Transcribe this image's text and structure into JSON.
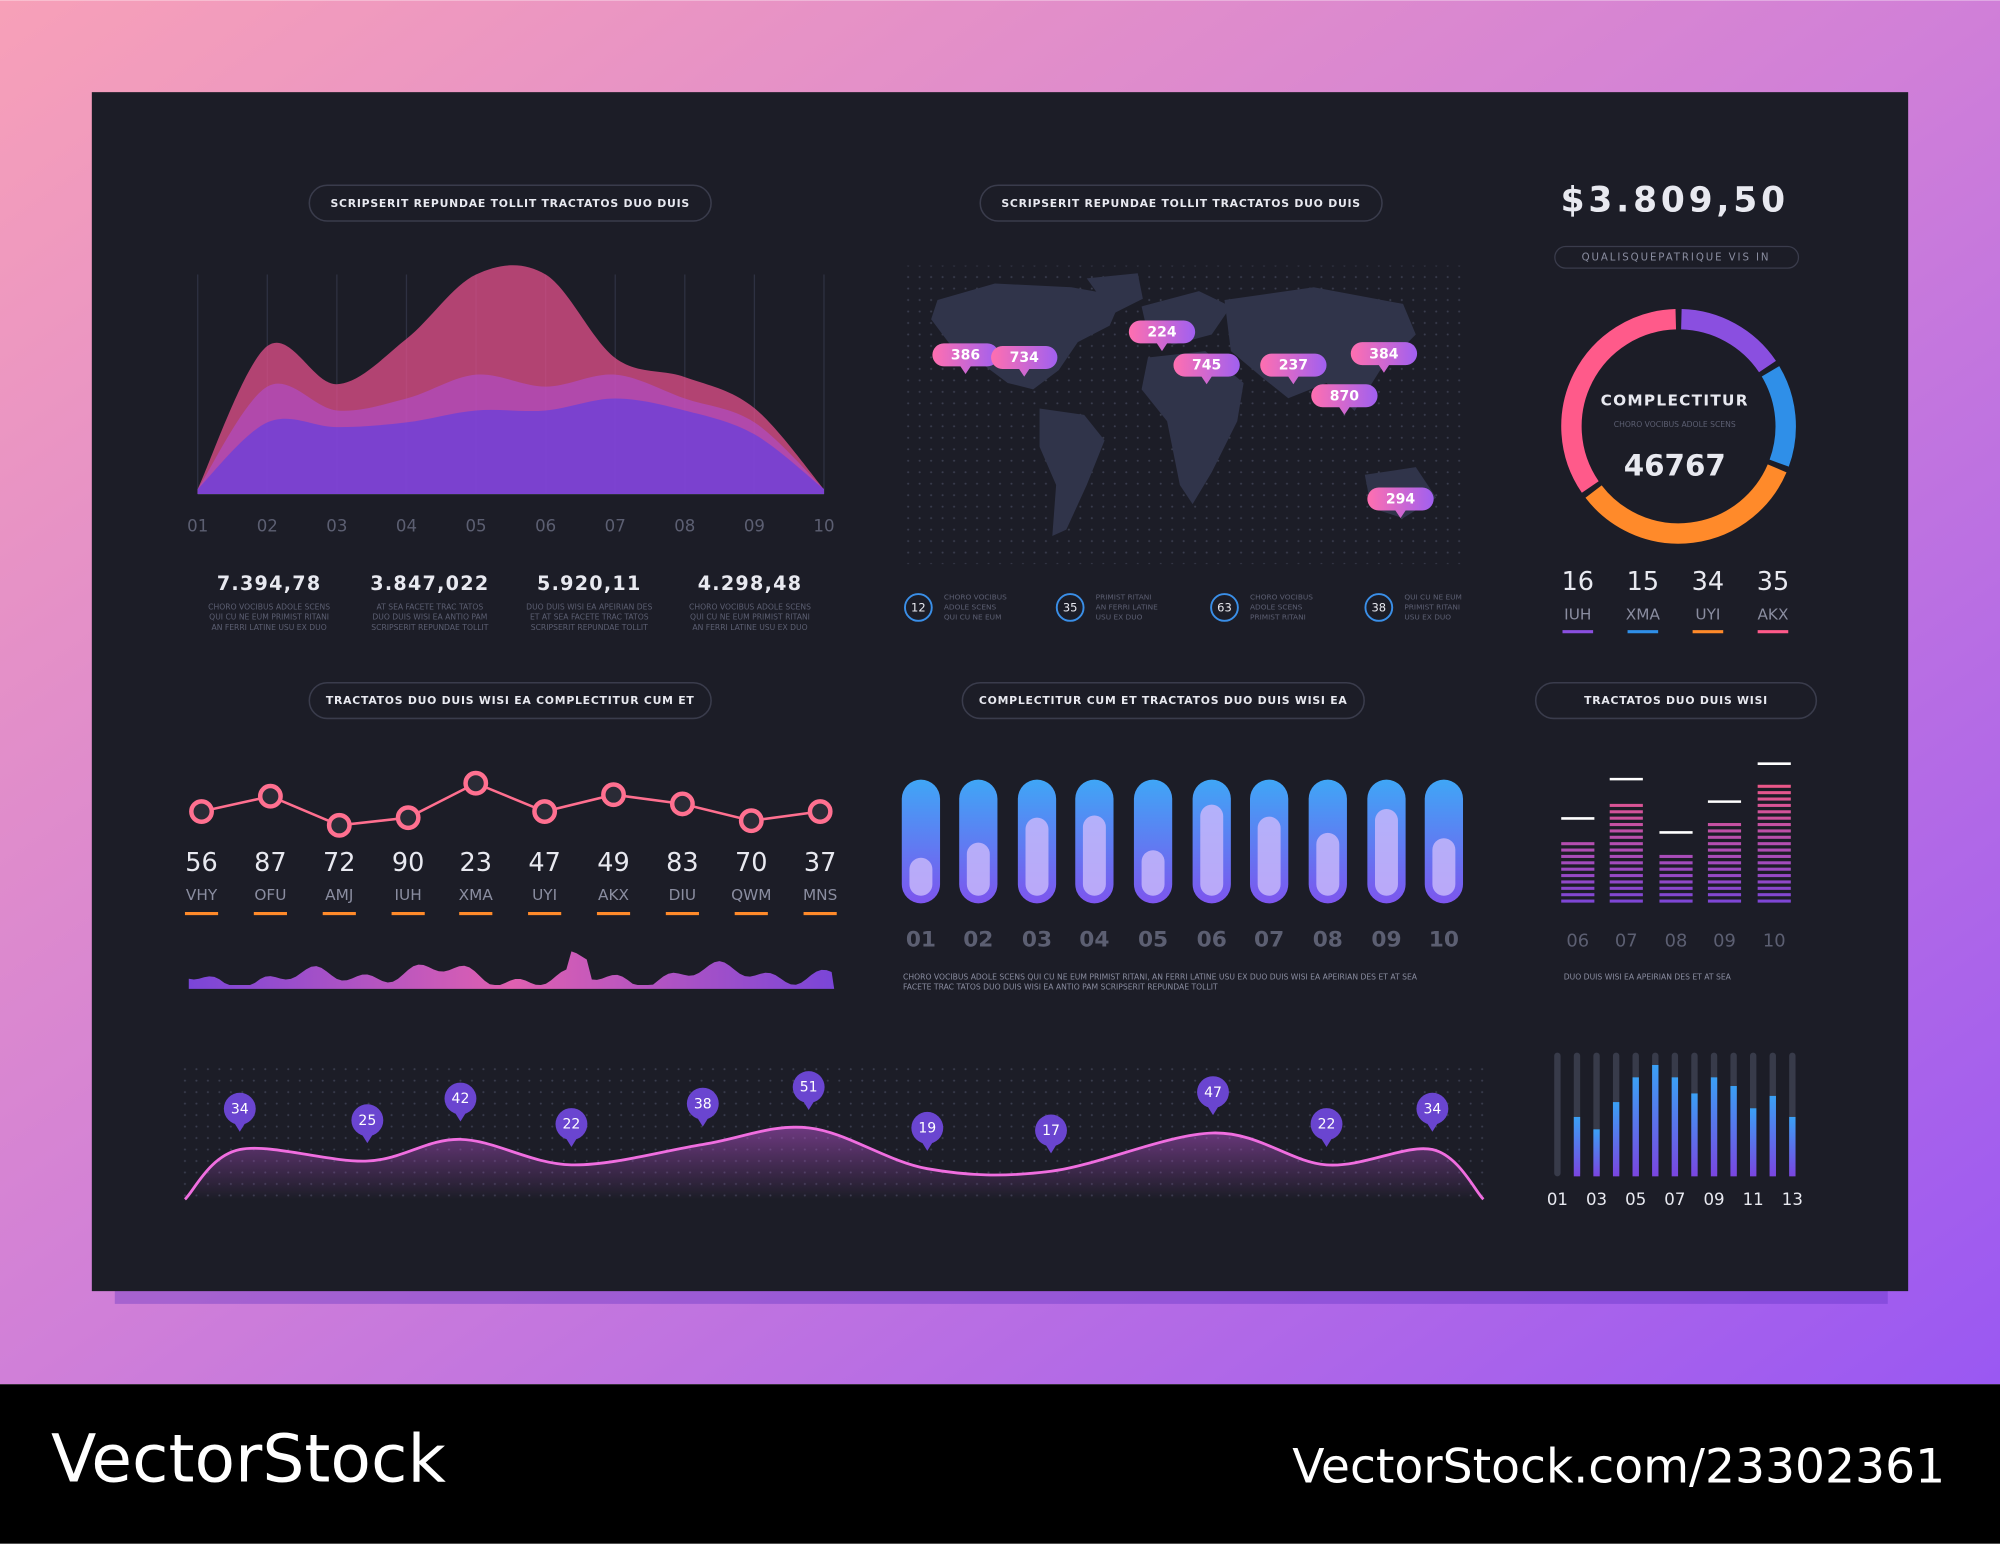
{
  "dashboard": {
    "total": "$3.809,50",
    "total_caption": "QUALISQUEPATRIQUE VIS IN"
  },
  "area_chart": {
    "type": "area",
    "title": "SCRIPSERIT REPUNDAE TOLLIT TRACTATOS DUO DUIS",
    "categories": [
      "01",
      "02",
      "03",
      "04",
      "05",
      "06",
      "07",
      "08",
      "09",
      "10"
    ],
    "ylim": [
      0,
      100
    ],
    "series": [
      {
        "color": "#e4508c",
        "values": [
          2,
          62,
          46,
          65,
          92,
          92,
          57,
          49,
          36,
          2
        ]
      },
      {
        "color": "#b04fd2",
        "values": [
          2,
          45,
          35,
          40,
          50,
          45,
          50,
          40,
          30,
          2
        ]
      },
      {
        "color": "#6e40d8",
        "values": [
          2,
          30,
          28,
          30,
          35,
          35,
          40,
          35,
          25,
          2
        ]
      }
    ],
    "stats": [
      {
        "value": "7.394,78",
        "lines": [
          "CHORO VOCIBUS ADOLE SCENS",
          "QUI CU NE EUM PRIMIST RITANI",
          "AN FERRI LATINE USU EX DUO"
        ]
      },
      {
        "value": "3.847,022",
        "lines": [
          "AT SEA FACETE TRAC TATOS",
          "DUO DUIS WISI EA ANTIO PAM",
          "SCRIPSERIT REPUNDAE TOLLIT"
        ]
      },
      {
        "value": "5.920,11",
        "lines": [
          "DUO DUIS WISI EA APEIRIAN DES",
          "ET AT SEA FACETE TRAC TATOS",
          "SCRIPSERIT REPUNDAE TOLLIT"
        ]
      },
      {
        "value": "4.298,48",
        "lines": [
          "CHORO VOCIBUS ADOLE SCENS",
          "QUI CU NE EUM PRIMIST RITANI",
          "AN FERRI LATINE USU EX DUO"
        ]
      }
    ]
  },
  "map": {
    "type": "map",
    "title": "SCRIPSERIT REPUNDAE TOLLIT TRACTATOS DUO DUIS",
    "pins": [
      386,
      734,
      224,
      745,
      237,
      384,
      870,
      294
    ],
    "legend": [
      {
        "value": 12,
        "lines": [
          "CHORO VOCIBUS",
          "ADOLE SCENS",
          "QUI CU NE EUM"
        ]
      },
      {
        "value": 35,
        "lines": [
          "PRIMIST RITANI",
          "AN FERRI LATINE",
          "USU EX DUO"
        ]
      },
      {
        "value": 63,
        "lines": [
          "CHORO VOCIBUS",
          "ADOLE SCENS",
          "PRIMIST RITANI"
        ]
      },
      {
        "value": 38,
        "lines": [
          "QUI CU NE EUM",
          "PRIMIST RITANI",
          "USU EX DUO"
        ]
      }
    ]
  },
  "donut": {
    "type": "donut",
    "title": "COMPLECTITUR",
    "subtitle": "CHORO VOCIBUS ADOLE SCENS",
    "total": 46767,
    "categories": [
      "IUH",
      "XMA",
      "UYI",
      "AKX"
    ],
    "values": [
      16,
      15,
      34,
      35
    ],
    "colors": [
      "#8a4fe0",
      "#2f8fe8",
      "#ff8a2a",
      "#ff5a8a"
    ]
  },
  "line_chart": {
    "type": "line",
    "title": "TRACTATOS DUO DUIS WISI EA COMPLECTITUR CUM ET",
    "categories": [
      "VHY",
      "OFU",
      "AMJ",
      "IUH",
      "XMA",
      "UYI",
      "AKX",
      "DIU",
      "QWM",
      "MNS"
    ],
    "values": [
      56,
      87,
      72,
      90,
      23,
      47,
      49,
      83,
      70,
      37
    ],
    "points": [
      40,
      60,
      22,
      32,
      77,
      40,
      62,
      50,
      28,
      40
    ],
    "ylim": [
      0,
      100
    ],
    "color": "#ff6f8f"
  },
  "bar_chart": {
    "type": "bar",
    "title": "COMPLECTITUR CUM ET TRACTATOS DUO DUIS WISI EA",
    "categories": [
      "01",
      "02",
      "03",
      "04",
      "05",
      "06",
      "07",
      "08",
      "09",
      "10"
    ],
    "values": [
      35,
      49,
      72,
      74,
      42,
      84,
      73,
      58,
      80,
      53
    ],
    "ylim": [
      0,
      100
    ],
    "caption": [
      "CHORO VOCIBUS ADOLE SCENS QUI CU NE EUM PRIMIST RITANI, AN FERRI LATINE USU EX DUO DUIS WISI EA APEIRIAN DES ET AT SEA",
      "FACETE TRAC TATOS DUO DUIS WISI EA ANTIO PAM SCRIPSERIT REPUNDAE TOLLIT"
    ]
  },
  "level_chart": {
    "type": "bar",
    "title": "TRACTATOS DUO DUIS WISI",
    "categories": [
      "06",
      "07",
      "08",
      "09",
      "10"
    ],
    "values": [
      46,
      74,
      36,
      58,
      85
    ],
    "ylim": [
      0,
      100
    ],
    "caption": "DUO DUIS WISI EA APEIRIAN DES ET AT SEA"
  },
  "wave_chart": {
    "type": "line",
    "values": [
      34,
      25,
      42,
      22,
      38,
      51,
      19,
      17,
      47,
      22,
      34
    ],
    "ylim": [
      0,
      100
    ],
    "color": "#f06ee0"
  },
  "mini_bars": {
    "type": "bar",
    "categories": [
      "01",
      null,
      "03",
      null,
      "05",
      null,
      "07",
      null,
      "09",
      null,
      "11",
      null,
      "13"
    ],
    "values": [
      0,
      48,
      38,
      60,
      80,
      90,
      80,
      67,
      80,
      73,
      55,
      65,
      48
    ],
    "ylim": [
      0,
      100
    ]
  },
  "footer": {
    "brand": "VectorStock",
    "url": "VectorStock.com/23302361"
  }
}
